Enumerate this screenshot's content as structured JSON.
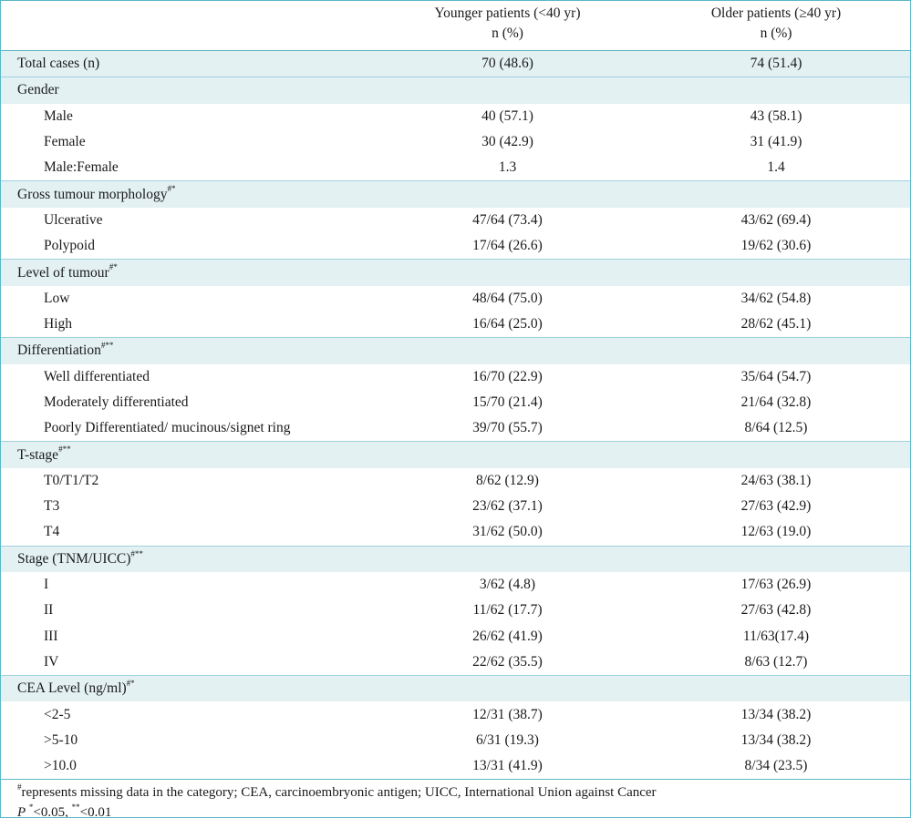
{
  "header": {
    "col1": "Younger patients (<40 yr)",
    "col1_unit": "n (%)",
    "col2": "Older patients (≥40 yr)",
    "col2_unit": "n (%)"
  },
  "total": {
    "label": "Total cases (n)",
    "young": "70 (48.6)",
    "old": "74 (51.4)"
  },
  "groups": [
    {
      "label": "Gender",
      "sup": "",
      "rows": [
        {
          "label": "Male",
          "young": "40 (57.1)",
          "old": "43 (58.1)"
        },
        {
          "label": "Female",
          "young": "30 (42.9)",
          "old": "31 (41.9)"
        },
        {
          "label": "Male:Female",
          "young": "1.3",
          "old": "1.4"
        }
      ]
    },
    {
      "label": "Gross tumour morphology",
      "sup": "#*",
      "rows": [
        {
          "label": "Ulcerative",
          "young": "47/64 (73.4)",
          "old": "43/62 (69.4)"
        },
        {
          "label": "Polypoid",
          "young": "17/64 (26.6)",
          "old": "19/62 (30.6)"
        }
      ]
    },
    {
      "label": "Level of tumour",
      "sup": "#*",
      "rows": [
        {
          "label": "Low",
          "young": "48/64 (75.0)",
          "old": "34/62 (54.8)"
        },
        {
          "label": "High",
          "young": "16/64 (25.0)",
          "old": "28/62 (45.1)"
        }
      ]
    },
    {
      "label": "Differentiation",
      "sup": "#**",
      "rows": [
        {
          "label": "Well differentiated",
          "young": "16/70 (22.9)",
          "old": "35/64 (54.7)"
        },
        {
          "label": "Moderately differentiated",
          "young": "15/70 (21.4)",
          "old": "21/64 (32.8)"
        },
        {
          "label": "Poorly Differentiated/ mucinous/signet ring",
          "young": "39/70 (55.7)",
          "old": "8/64 (12.5)"
        }
      ]
    },
    {
      "label": "T-stage",
      "sup": "#**",
      "rows": [
        {
          "label": "T0/T1/T2",
          "young": "8/62 (12.9)",
          "old": "24/63 (38.1)"
        },
        {
          "label": "T3",
          "young": "23/62 (37.1)",
          "old": "27/63 (42.9)"
        },
        {
          "label": "T4",
          "young": "31/62 (50.0)",
          "old": "12/63 (19.0)"
        }
      ]
    },
    {
      "label": "Stage (TNM/UICC)",
      "sup": "#**",
      "rows": [
        {
          "label": "I",
          "young": "3/62 (4.8)",
          "old": "17/63 (26.9)"
        },
        {
          "label": "II",
          "young": "11/62 (17.7)",
          "old": "27/63 (42.8)"
        },
        {
          "label": "III",
          "young": "26/62 (41.9)",
          "old": "11/63(17.4)"
        },
        {
          "label": "IV",
          "young": "22/62 (35.5)",
          "old": "8/63 (12.7)"
        }
      ]
    },
    {
      "label": "CEA Level (ng/ml)",
      "sup": "#*",
      "rows": [
        {
          "label": "<2-5",
          "young": "12/31 (38.7)",
          "old": "13/34 (38.2)"
        },
        {
          "label": ">5-10",
          "young": "6/31 (19.3)",
          "old": "13/34 (38.2)"
        },
        {
          "label": ">10.0",
          "young": "13/31 (41.9)",
          "old": "8/34 (23.5)"
        }
      ]
    }
  ],
  "footnotes": {
    "note1_sup": "#",
    "note1": "represents missing data in the category; CEA, carcinoembryonic antigen; UICC, International Union against Cancer",
    "note2_p": "P",
    "note2_sup1": "*",
    "note2_a": "<0.05, ",
    "note2_sup2": "**",
    "note2_b": "<0.01"
  }
}
